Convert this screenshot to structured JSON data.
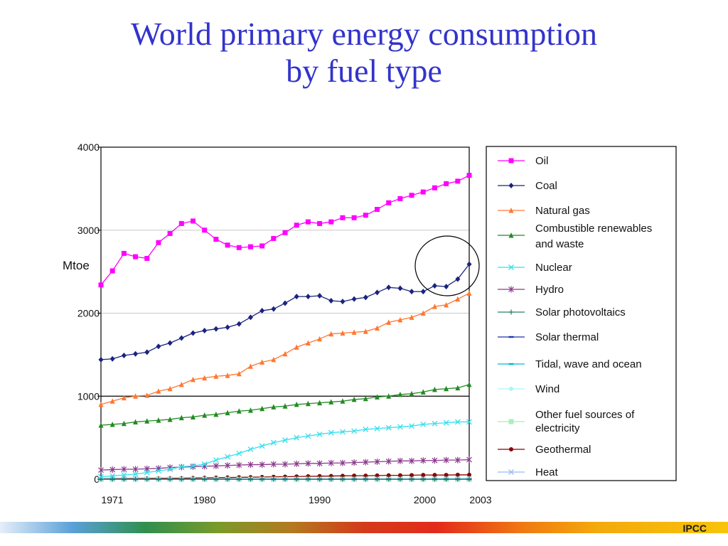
{
  "title_line1": "World primary energy consumption",
  "title_line2": "by fuel type",
  "footer_label": "IPCC",
  "chart_data": {
    "type": "line",
    "ylabel": "Mtoe",
    "ylim": [
      0,
      4000
    ],
    "yticks": [
      "0",
      "1000",
      "2000",
      "3000",
      "4000"
    ],
    "xticks": [
      "1971",
      "1980",
      "1990",
      "2000",
      "2003"
    ],
    "x": [
      1971,
      1972,
      1973,
      1974,
      1975,
      1976,
      1977,
      1978,
      1979,
      1980,
      1981,
      1982,
      1983,
      1984,
      1985,
      1986,
      1987,
      1988,
      1989,
      1990,
      1991,
      1992,
      1993,
      1994,
      1995,
      1996,
      1997,
      1998,
      1999,
      2000,
      2001,
      2002,
      2003
    ],
    "grid": true,
    "legend_position": "right",
    "series": [
      {
        "name": "Oil",
        "color": "#ff00ff",
        "marker": "square",
        "values": [
          2340,
          2510,
          2720,
          2680,
          2660,
          2850,
          2960,
          3080,
          3110,
          3000,
          2890,
          2820,
          2790,
          2800,
          2810,
          2900,
          2970,
          3060,
          3100,
          3080,
          3100,
          3150,
          3150,
          3180,
          3250,
          3330,
          3380,
          3420,
          3460,
          3510,
          3560,
          3590,
          3660
        ]
      },
      {
        "name": "Coal",
        "color": "#1a237e",
        "marker": "diamond",
        "values": [
          1440,
          1450,
          1490,
          1510,
          1530,
          1600,
          1640,
          1700,
          1760,
          1790,
          1810,
          1830,
          1870,
          1950,
          2030,
          2050,
          2120,
          2200,
          2200,
          2210,
          2150,
          2140,
          2170,
          2190,
          2250,
          2310,
          2300,
          2260,
          2260,
          2330,
          2320,
          2410,
          2590
        ]
      },
      {
        "name": "Natural gas",
        "color": "#ff7733",
        "marker": "triangle",
        "values": [
          900,
          940,
          980,
          1000,
          1010,
          1060,
          1090,
          1140,
          1200,
          1220,
          1240,
          1250,
          1270,
          1360,
          1410,
          1440,
          1510,
          1590,
          1640,
          1690,
          1750,
          1760,
          1770,
          1780,
          1820,
          1890,
          1920,
          1950,
          2000,
          2080,
          2100,
          2170,
          2240
        ]
      },
      {
        "name": "Combustible renewables and waste",
        "color": "#228b22",
        "marker": "triangle",
        "values": [
          650,
          660,
          670,
          690,
          700,
          710,
          720,
          740,
          750,
          770,
          780,
          800,
          820,
          830,
          850,
          870,
          880,
          900,
          910,
          920,
          930,
          940,
          960,
          970,
          990,
          1000,
          1020,
          1030,
          1050,
          1080,
          1090,
          1100,
          1140
        ]
      },
      {
        "name": "Nuclear",
        "color": "#33e0ee",
        "marker": "x",
        "values": [
          30,
          40,
          50,
          60,
          80,
          100,
          120,
          150,
          160,
          180,
          230,
          270,
          310,
          360,
          400,
          440,
          470,
          500,
          520,
          540,
          560,
          570,
          580,
          600,
          610,
          620,
          630,
          640,
          660,
          670,
          680,
          690,
          690
        ]
      },
      {
        "name": "Hydro",
        "color": "#8b3a8b",
        "marker": "star",
        "values": [
          110,
          115,
          120,
          120,
          125,
          130,
          140,
          145,
          150,
          155,
          160,
          165,
          170,
          175,
          175,
          180,
          180,
          185,
          190,
          190,
          195,
          195,
          200,
          205,
          210,
          215,
          220,
          220,
          225,
          225,
          230,
          230,
          235
        ]
      },
      {
        "name": "Solar photovoltaics",
        "color": "#2e7d6b",
        "marker": "plus",
        "values": [
          0,
          0,
          0,
          0,
          0,
          0,
          0,
          0,
          0,
          0,
          0,
          0,
          0,
          0,
          0,
          0,
          0,
          0,
          0,
          0,
          0,
          0,
          0,
          0,
          0,
          0,
          0,
          0,
          0,
          0,
          0,
          0,
          0
        ]
      },
      {
        "name": "Solar thermal",
        "color": "#1a33aa",
        "marker": "dash",
        "values": [
          0,
          0,
          0,
          0,
          0,
          0,
          0,
          0,
          0,
          0,
          0,
          0,
          0,
          0,
          0,
          0,
          0,
          0,
          0,
          0,
          0,
          0,
          0,
          0,
          0,
          0,
          0,
          0,
          0,
          0,
          0,
          0,
          0
        ]
      },
      {
        "name": "Tidal, wave and ocean",
        "color": "#00b7d4",
        "marker": "dash",
        "values": [
          0,
          0,
          0,
          0,
          0,
          0,
          0,
          0,
          0,
          0,
          0,
          0,
          0,
          0,
          0,
          0,
          0,
          0,
          0,
          0,
          0,
          0,
          0,
          0,
          0,
          0,
          0,
          0,
          0,
          0,
          0,
          0,
          0
        ]
      },
      {
        "name": "Wind",
        "color": "#aaf5f5",
        "marker": "circle",
        "values": [
          0,
          0,
          0,
          0,
          0,
          0,
          0,
          0,
          0,
          0,
          0,
          0,
          0,
          0,
          0,
          0,
          0,
          0,
          1,
          1,
          2,
          2,
          2,
          2,
          3,
          3,
          3,
          4,
          5,
          6,
          7,
          9,
          10
        ]
      },
      {
        "name": "Other fuel sources of electricity",
        "color": "#aaeebb",
        "marker": "square",
        "values": [
          0,
          0,
          0,
          0,
          0,
          0,
          0,
          0,
          0,
          0,
          0,
          0,
          0,
          0,
          0,
          0,
          0,
          0,
          0,
          0,
          0,
          0,
          0,
          0,
          0,
          0,
          0,
          0,
          0,
          0,
          0,
          0,
          0
        ]
      },
      {
        "name": "Geothermal",
        "color": "#8b0000",
        "marker": "circle",
        "values": [
          5,
          6,
          7,
          8,
          9,
          10,
          11,
          12,
          14,
          16,
          18,
          20,
          22,
          24,
          26,
          28,
          30,
          32,
          34,
          36,
          38,
          40,
          42,
          42,
          44,
          46,
          46,
          48,
          50,
          50,
          50,
          52,
          52
        ]
      },
      {
        "name": "Heat",
        "color": "#99bbee",
        "marker": "x",
        "values": [
          0,
          0,
          0,
          0,
          0,
          0,
          0,
          0,
          0,
          0,
          0,
          0,
          0,
          0,
          0,
          0,
          0,
          0,
          0,
          0,
          0,
          0,
          0,
          0,
          0,
          0,
          0,
          0,
          0,
          0,
          0,
          0,
          0
        ]
      }
    ]
  }
}
